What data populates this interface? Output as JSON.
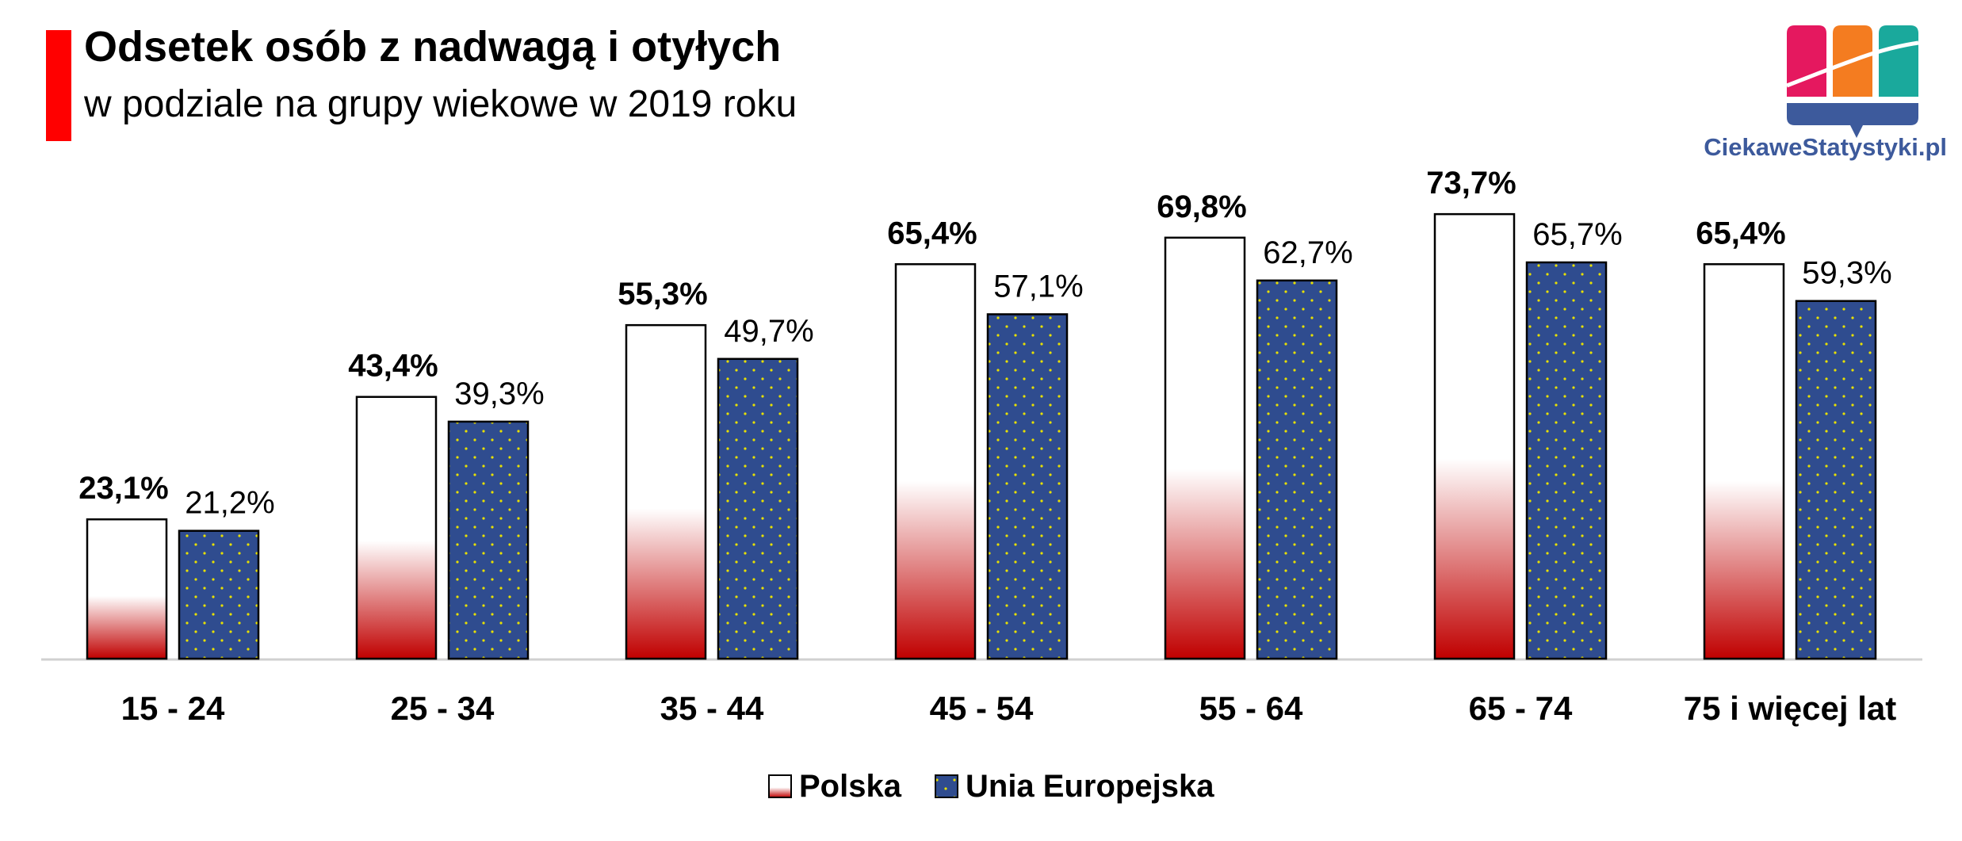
{
  "header": {
    "title": "Odsetek osób z nadwagą i otyłych",
    "subtitle": "w podziale na grupy wiekowe w 2019 roku"
  },
  "brand": {
    "name": "CiekaweStatystyki.pl",
    "colors": [
      "#e5185f",
      "#f47c20",
      "#1aa99c",
      "#3d5a9c"
    ]
  },
  "colors": {
    "accent": "#ff0000",
    "pl_bottom": "#c00000",
    "eu_fill": "#2f4c8f",
    "eu_dot": "#e8e000",
    "axis": "#d0d0d0"
  },
  "chart_data": {
    "type": "bar",
    "title": "Odsetek osób z nadwagą i otyłych",
    "subtitle": "w podziale na grupy wiekowe w 2019 roku",
    "categories": [
      "15 - 24",
      "25 - 34",
      "35 - 44",
      "45 - 54",
      "55 - 64",
      "65 - 74",
      "75 i więcej lat"
    ],
    "series": [
      {
        "name": "Polska",
        "values": [
          23.1,
          43.4,
          55.3,
          65.4,
          69.8,
          73.7,
          65.4
        ],
        "labels": [
          "23,1%",
          "43,4%",
          "55,3%",
          "65,4%",
          "69,8%",
          "73,7%",
          "65,4%"
        ]
      },
      {
        "name": "Unia Europejska",
        "values": [
          21.2,
          39.3,
          49.7,
          57.1,
          62.7,
          65.7,
          59.3
        ],
        "labels": [
          "21,2%",
          "39,3%",
          "49,7%",
          "57,1%",
          "62,7%",
          "65,7%",
          "59,3%"
        ]
      }
    ],
    "ylim": [
      0,
      100
    ],
    "grid": false,
    "legend": "bottom-center",
    "xlabel": "",
    "ylabel": ""
  }
}
